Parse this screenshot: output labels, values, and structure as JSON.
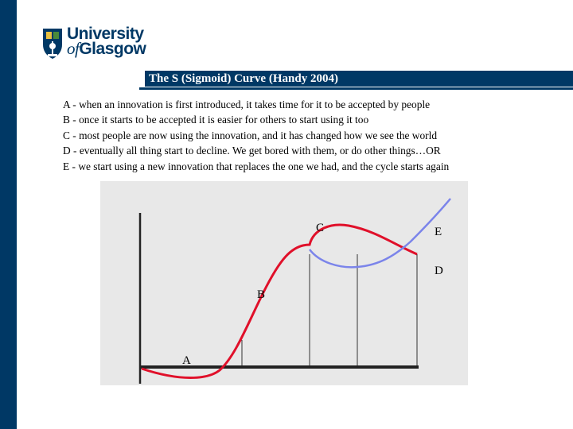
{
  "logo": {
    "line1": "University",
    "line2_prefix": "of",
    "line2_main": "Glasgow"
  },
  "slide": {
    "title": "The S (Sigmoid) Curve (Handy 2004)",
    "lines": [
      "A - when an innovation is first introduced, it takes time for it to be accepted by people",
      "B - once it starts to be accepted it is easier for others to start using it too",
      "C - most people are now using the innovation, and it has changed how we see the world",
      "D - eventually all thing start to decline. We get bored with them, or do other things…OR",
      "E - we start using a new innovation that replaces the one we had, and the cycle starts again"
    ]
  },
  "diagram": {
    "labels": {
      "a": "A",
      "b": "B",
      "c": "C",
      "d": "D",
      "e": "E"
    },
    "colors": {
      "background": "#e8e8e8",
      "main_curve": "#e0102a",
      "new_curve": "#7b84ea",
      "axes": "#222222"
    }
  },
  "colors": {
    "brand": "#003865"
  }
}
